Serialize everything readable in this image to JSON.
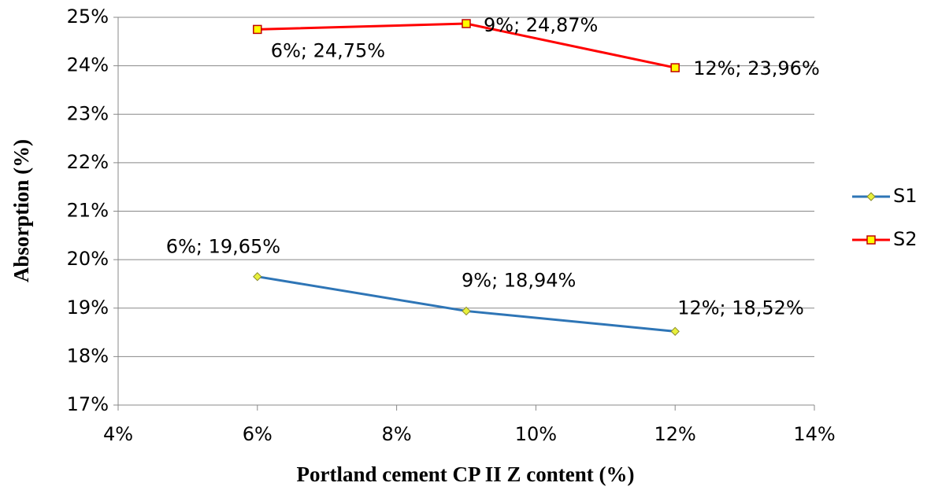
{
  "chart_data": {
    "type": "line",
    "x_label": "Portland cement CP II Z content (%)",
    "y_label": "Absorption (%)",
    "x": [
      6,
      9,
      12
    ],
    "series": [
      {
        "name": "S1",
        "color": "#2e75b6",
        "marker": "diamond",
        "marker_color": "#e8f03c",
        "values": [
          19.65,
          18.94,
          18.52
        ],
        "value_labels": [
          "6%; 19,65%",
          "9%; 18,94%",
          "12%; 18,52%"
        ]
      },
      {
        "name": "S2",
        "color": "#ff0000",
        "marker": "square",
        "marker_color": "#ffff00",
        "values": [
          24.75,
          24.87,
          23.96
        ],
        "value_labels": [
          "6%; 24,75%",
          "9%; 24,87%",
          "12%; 23,96%"
        ]
      }
    ],
    "xlim": [
      4,
      14
    ],
    "xticks": [
      {
        "value": 4,
        "label": "4%"
      },
      {
        "value": 6,
        "label": "6%"
      },
      {
        "value": 8,
        "label": "8%"
      },
      {
        "value": 10,
        "label": "10%"
      },
      {
        "value": 12,
        "label": "12%"
      },
      {
        "value": 14,
        "label": "14%"
      }
    ],
    "ylim": [
      17,
      25
    ],
    "yticks": [
      {
        "value": 17,
        "label": "17%"
      },
      {
        "value": 18,
        "label": "18%"
      },
      {
        "value": 19,
        "label": "19%"
      },
      {
        "value": 20,
        "label": "20%"
      },
      {
        "value": 21,
        "label": "21%"
      },
      {
        "value": 22,
        "label": "22%"
      },
      {
        "value": 23,
        "label": "23%"
      },
      {
        "value": 24,
        "label": "24%"
      },
      {
        "value": 25,
        "label": "25%"
      }
    ],
    "grid": true,
    "legend": "right"
  }
}
